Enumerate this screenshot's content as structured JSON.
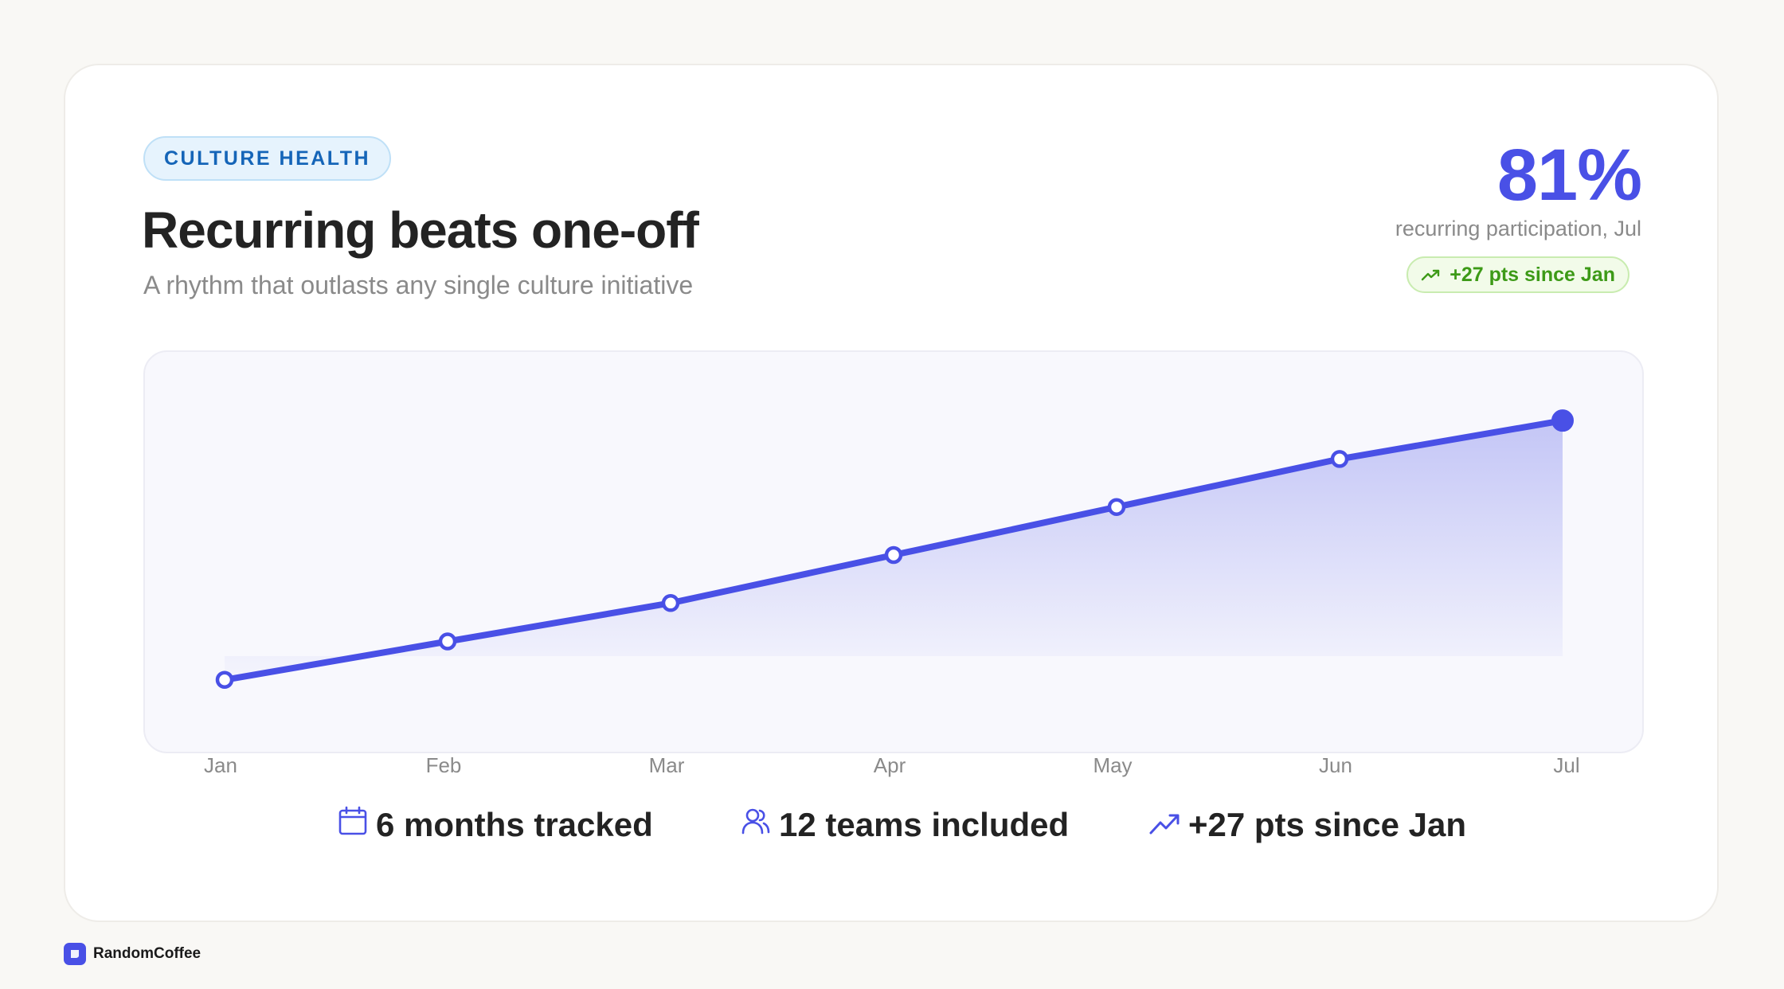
{
  "header": {
    "badge": "CULTURE HEALTH",
    "title": "Recurring beats one-off",
    "subtitle": "A rhythm that outlasts any single culture initiative"
  },
  "kpi": {
    "value": "81%",
    "label": "recurring participation, Jul",
    "delta": "+27 pts since Jan",
    "delta_icon": "trend-up-icon"
  },
  "stats": [
    {
      "icon": "calendar-icon",
      "text": "6 months tracked"
    },
    {
      "icon": "users-icon",
      "text": "12 teams included"
    },
    {
      "icon": "trend-up-icon",
      "text": "+27 pts since Jan"
    }
  ],
  "brand": {
    "name": "RandomCoffee"
  },
  "colors": {
    "accent": "#4950e6",
    "positive": "#3d9a17",
    "badge_text": "#1565b8"
  },
  "chart_data": {
    "type": "area",
    "categories": [
      "Jan",
      "Feb",
      "Mar",
      "Apr",
      "May",
      "Jun",
      "Jul"
    ],
    "series": [
      {
        "values": [
          54,
          58,
          62,
          67,
          72,
          77,
          81
        ]
      }
    ],
    "ylim": [
      50,
      84
    ],
    "grid": false,
    "highlight_last": true
  }
}
